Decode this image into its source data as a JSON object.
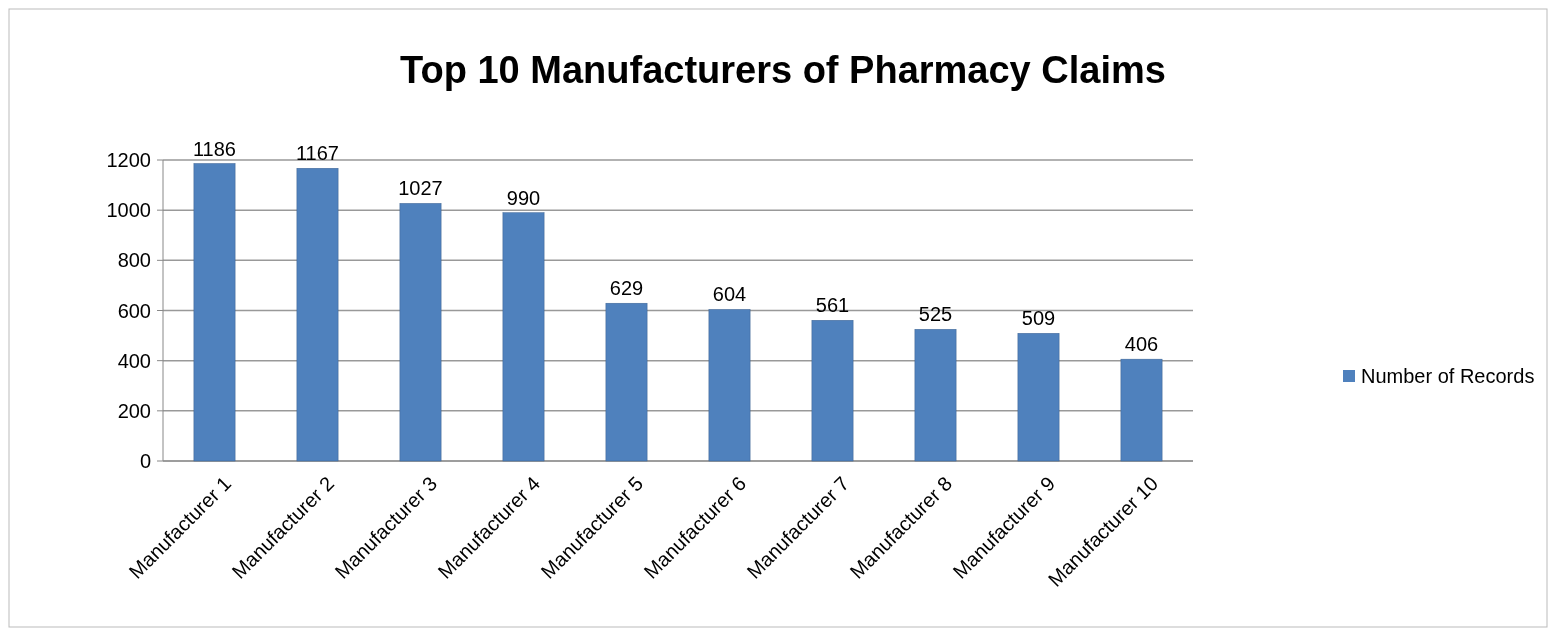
{
  "chart_data": {
    "type": "bar",
    "title": "Top 10 Manufacturers of Pharmacy Claims",
    "categories": [
      "Manufacturer 1",
      "Manufacturer 2",
      "Manufacturer 3",
      "Manufacturer 4",
      "Manufacturer 5",
      "Manufacturer 6",
      "Manufacturer 7",
      "Manufacturer 8",
      "Manufacturer 9",
      "Manufacturer 10"
    ],
    "series": [
      {
        "name": "Number of Records",
        "color": "#4f81bd",
        "values": [
          1186,
          1167,
          1027,
          990,
          629,
          604,
          561,
          525,
          509,
          406
        ]
      }
    ],
    "ylim": [
      0,
      1200
    ],
    "yticks": [
      0,
      200,
      400,
      600,
      800,
      1000,
      1200
    ],
    "grid": "y",
    "legend": "right",
    "data_labels": true
  }
}
